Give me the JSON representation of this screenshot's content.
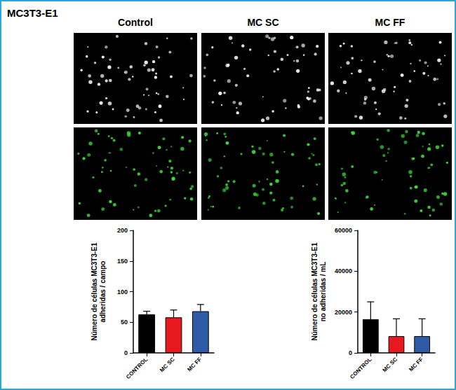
{
  "figure_label": "MC3T3-E1",
  "panel_titles": [
    "Control",
    "MC SC",
    "MC FF"
  ],
  "chart_data": [
    {
      "type": "bar",
      "y_label": "Número de células MC3T3-E1\nadheridas / campo",
      "categories": [
        "CONTROL",
        "MC SC",
        "MC FF"
      ],
      "values": [
        63,
        58,
        68
      ],
      "errors": [
        5,
        12,
        11
      ],
      "colors": [
        "#000000",
        "#e8191e",
        "#2e5aa8"
      ],
      "ylim": [
        0,
        200
      ],
      "yticks": [
        0,
        50,
        100,
        150,
        200
      ],
      "grid": false
    },
    {
      "type": "bar",
      "y_label": "Número de células MC3T3-E1\nno adheridas / mL",
      "categories": [
        "CONTROL",
        "MC SC",
        "MC FF"
      ],
      "values": [
        16500,
        8200,
        8200
      ],
      "errors": [
        8500,
        8500,
        8500
      ],
      "colors": [
        "#000000",
        "#e8191e",
        "#2e5aa8"
      ],
      "ylim": [
        0,
        60000
      ],
      "yticks": [
        0,
        20000,
        40000,
        60000
      ],
      "grid": false
    }
  ]
}
